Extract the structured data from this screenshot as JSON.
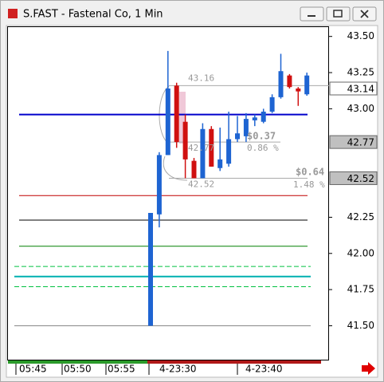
{
  "chart_data": {
    "type": "candlestick",
    "window_title": "S.FAST - Fastenal Co, 1 Min",
    "up_color": "#1e64d2",
    "down_color": "#d01010",
    "open": [
      41.5,
      42.27,
      42.68,
      43.16,
      42.91,
      42.64,
      42.52,
      42.86,
      42.59,
      42.62,
      42.79,
      42.81,
      42.92,
      42.91,
      42.98,
      43.08,
      43.23,
      43.14,
      43.1
    ],
    "high": [
      42.28,
      42.7,
      43.4,
      43.18,
      42.96,
      42.66,
      42.9,
      42.88,
      42.87,
      42.98,
      42.95,
      42.97,
      42.96,
      43.0,
      43.1,
      43.38,
      43.24,
      43.15,
      43.25
    ],
    "low": [
      41.5,
      42.18,
      42.68,
      42.73,
      42.52,
      42.52,
      42.52,
      42.6,
      42.57,
      42.6,
      42.77,
      42.77,
      42.88,
      42.9,
      42.97,
      43.07,
      43.14,
      43.02,
      43.09
    ],
    "close": [
      42.28,
      42.68,
      43.14,
      42.77,
      42.65,
      42.52,
      42.86,
      42.6,
      42.65,
      42.79,
      42.83,
      42.93,
      42.94,
      42.98,
      43.08,
      43.26,
      43.15,
      43.12,
      43.23
    ],
    "ylim": [
      41.26,
      43.57
    ],
    "yticks": [
      {
        "value": 43.5,
        "label": "43.50"
      },
      {
        "value": 43.25,
        "label": "43.25"
      },
      {
        "value": 43.0,
        "label": "43.00"
      },
      {
        "value": 42.25,
        "label": "42.25"
      },
      {
        "value": 42.0,
        "label": "42.00"
      },
      {
        "value": 41.75,
        "label": "41.75"
      },
      {
        "value": 41.5,
        "label": "41.50"
      }
    ],
    "price_markers": [
      {
        "value": 43.14,
        "color": "#ffffff"
      },
      {
        "value": 42.77,
        "color": "#c0c0c0"
      },
      {
        "value": 42.52,
        "color": "#c0c0c0"
      }
    ],
    "xtick_labels": [
      "05:45",
      "05:50",
      "05:55",
      "4-23:30",
      "4-23:40"
    ],
    "levels": [
      {
        "value": 42.96,
        "color": "#0000cc",
        "dashed": false
      },
      {
        "value": 42.4,
        "color": "#c00000",
        "dashed": false
      },
      {
        "value": 42.23,
        "color": "#000000",
        "dashed": false
      },
      {
        "value": 42.05,
        "color": "#008000",
        "dashed": false
      },
      {
        "value": 41.91,
        "color": "#00c040",
        "dashed": true
      },
      {
        "value": 41.84,
        "color": "#00b0b0",
        "dashed": false
      },
      {
        "value": 41.77,
        "color": "#00c040",
        "dashed": true
      },
      {
        "value": 41.5,
        "color": "#888888",
        "dashed": false
      }
    ],
    "measure": {
      "high": 43.16,
      "mid": 42.77,
      "low": 42.52,
      "change1": "$0.37",
      "pct1": "0.86 %",
      "change2": "$0.64",
      "pct2": "1.48 %"
    }
  }
}
